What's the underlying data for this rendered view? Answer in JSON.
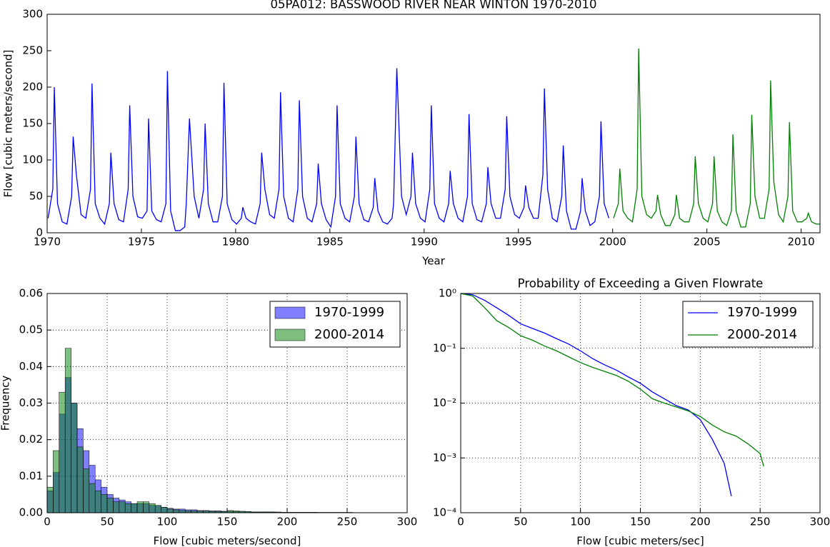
{
  "chart_data": [
    {
      "type": "line",
      "title": "05PA012: BASSWOOD RIVER NEAR WINTON 1970-2010",
      "x_label": "Year",
      "y_label": "Flow [cubic meters/second]",
      "xlim": [
        1970,
        2011
      ],
      "xticks": [
        1970,
        1975,
        1980,
        1985,
        1990,
        1995,
        2000,
        2005,
        2010
      ],
      "ylim": [
        0,
        300
      ],
      "yticks": [
        0,
        50,
        100,
        150,
        200,
        250,
        300
      ],
      "grid": false,
      "series": [
        {
          "color": "#0000ff",
          "x": [
            1970.05,
            1970.3,
            1970.38,
            1970.55,
            1970.8,
            1971.05,
            1971.3,
            1971.38,
            1971.55,
            1971.8,
            1972.05,
            1972.3,
            1972.38,
            1972.55,
            1972.8,
            1973.05,
            1973.3,
            1973.38,
            1973.55,
            1973.8,
            1974.05,
            1974.3,
            1974.38,
            1974.55,
            1974.8,
            1975.05,
            1975.3,
            1975.38,
            1975.55,
            1975.8,
            1976.05,
            1976.3,
            1976.38,
            1976.55,
            1976.8,
            1977.05,
            1977.3,
            1977.38,
            1977.55,
            1977.8,
            1978.05,
            1978.3,
            1978.38,
            1978.55,
            1978.8,
            1979.05,
            1979.3,
            1979.38,
            1979.55,
            1979.8,
            1980.05,
            1980.3,
            1980.38,
            1980.55,
            1980.8,
            1981.05,
            1981.3,
            1981.38,
            1981.55,
            1981.8,
            1982.05,
            1982.3,
            1982.38,
            1982.55,
            1982.8,
            1983.05,
            1983.3,
            1983.38,
            1983.55,
            1983.8,
            1984.05,
            1984.3,
            1984.38,
            1984.55,
            1984.8,
            1985.05,
            1985.3,
            1985.38,
            1985.55,
            1985.8,
            1986.05,
            1986.3,
            1986.38,
            1986.55,
            1986.8,
            1987.05,
            1987.3,
            1987.38,
            1987.55,
            1987.8,
            1988.05,
            1988.3,
            1988.38,
            1988.55,
            1988.8,
            1989.05,
            1989.3,
            1989.38,
            1989.55,
            1989.8,
            1990.05,
            1990.3,
            1990.38,
            1990.55,
            1990.8,
            1991.05,
            1991.3,
            1991.38,
            1991.55,
            1991.8,
            1992.05,
            1992.3,
            1992.38,
            1992.55,
            1992.8,
            1993.05,
            1993.3,
            1993.38,
            1993.55,
            1993.8,
            1994.05,
            1994.3,
            1994.38,
            1994.55,
            1994.8,
            1995.05,
            1995.3,
            1995.38,
            1995.55,
            1995.8,
            1996.05,
            1996.3,
            1996.38,
            1996.55,
            1996.8,
            1997.05,
            1997.3,
            1997.38,
            1997.55,
            1997.8,
            1998.05,
            1998.3,
            1998.38,
            1998.55,
            1998.8,
            1999.05,
            1999.3,
            1999.38,
            1999.55,
            1999.8
          ],
          "values": [
            20,
            60,
            200,
            40,
            15,
            12,
            50,
            132,
            80,
            25,
            20,
            60,
            205,
            40,
            20,
            12,
            40,
            110,
            40,
            18,
            15,
            60,
            175,
            50,
            22,
            20,
            30,
            157,
            30,
            18,
            15,
            40,
            222,
            30,
            3,
            3,
            8,
            40,
            157,
            50,
            20,
            60,
            150,
            40,
            15,
            15,
            50,
            206,
            40,
            18,
            12,
            20,
            35,
            20,
            15,
            12,
            40,
            110,
            60,
            25,
            20,
            60,
            193,
            50,
            20,
            15,
            60,
            182,
            50,
            20,
            15,
            40,
            95,
            40,
            18,
            8,
            50,
            175,
            40,
            20,
            15,
            50,
            132,
            40,
            18,
            15,
            35,
            75,
            30,
            15,
            12,
            20,
            40,
            226,
            50,
            25,
            50,
            110,
            40,
            20,
            15,
            60,
            175,
            40,
            20,
            15,
            40,
            85,
            40,
            20,
            15,
            50,
            163,
            40,
            18,
            15,
            40,
            90,
            40,
            20,
            20,
            60,
            160,
            50,
            25,
            20,
            35,
            65,
            35,
            20,
            20,
            80,
            198,
            60,
            20,
            15,
            50,
            120,
            30,
            5,
            5,
            30,
            75,
            30,
            10,
            15,
            50,
            153,
            40,
            20
          ]
        },
        {
          "color": "#008000",
          "x": [
            2000.05,
            2000.3,
            2000.38,
            2000.55,
            2000.8,
            2001.05,
            2001.3,
            2001.38,
            2001.55,
            2001.8,
            2002.05,
            2002.3,
            2002.38,
            2002.55,
            2002.8,
            2003.05,
            2003.3,
            2003.38,
            2003.55,
            2003.8,
            2004.05,
            2004.3,
            2004.38,
            2004.55,
            2004.8,
            2005.05,
            2005.3,
            2005.38,
            2005.55,
            2005.8,
            2006.05,
            2006.3,
            2006.38,
            2006.55,
            2006.8,
            2007.05,
            2007.3,
            2007.38,
            2007.55,
            2007.8,
            2008.05,
            2008.3,
            2008.38,
            2008.55,
            2008.8,
            2009.05,
            2009.3,
            2009.38,
            2009.55,
            2009.8,
            2010.05,
            2010.3,
            2010.38,
            2010.55,
            2010.8,
            2011
          ],
          "values": [
            20,
            40,
            88,
            30,
            20,
            15,
            60,
            253,
            50,
            25,
            20,
            30,
            52,
            25,
            10,
            10,
            25,
            52,
            20,
            15,
            15,
            40,
            105,
            40,
            20,
            15,
            40,
            105,
            30,
            15,
            10,
            30,
            135,
            30,
            8,
            8,
            40,
            162,
            50,
            20,
            20,
            60,
            209,
            70,
            25,
            15,
            50,
            152,
            30,
            15,
            15,
            20,
            27,
            15,
            12,
            12
          ]
        }
      ]
    },
    {
      "type": "histogram",
      "x_label": "Flow [cubic meters/second]",
      "y_label": "Frequency",
      "xlim": [
        0,
        300
      ],
      "xticks": [
        0,
        50,
        100,
        150,
        200,
        250,
        300
      ],
      "ylim": [
        0,
        0.06
      ],
      "yticks": [
        {
          "value": 0,
          "label": "0.00"
        },
        0.01,
        0.02,
        0.03,
        0.04,
        0.05,
        0.06
      ],
      "grid": true,
      "legend": "upper right",
      "bins": [
        0,
        5,
        10,
        15,
        20,
        25,
        30,
        35,
        40,
        45,
        50,
        55,
        60,
        65,
        70,
        75,
        80,
        85,
        90,
        95,
        100,
        105,
        110,
        115,
        120,
        125,
        130,
        135,
        140,
        145,
        150,
        155,
        160,
        165,
        170,
        175,
        180,
        185,
        190,
        195,
        200,
        205,
        210,
        215,
        220,
        225,
        230,
        235,
        240,
        245,
        250,
        255
      ],
      "series": [
        {
          "name": "1970-1999",
          "color": "#0000ff",
          "values": [
            0.006,
            0.011,
            0.027,
            0.037,
            0.03,
            0.023,
            0.017,
            0.013,
            0.009,
            0.007,
            0.005,
            0.004,
            0.0035,
            0.003,
            0.0025,
            0.0025,
            0.0025,
            0.002,
            0.002,
            0.0015,
            0.0012,
            0.001,
            0.001,
            0.0008,
            0.0008,
            0.0006,
            0.0006,
            0.0005,
            0.0005,
            0.0004,
            0.0004,
            0.0003,
            0.0003,
            0.0003,
            0.0002,
            0.0002,
            0.0002,
            0.0002,
            0.0001,
            0.0001,
            0.0001,
            0.0001,
            0.0001,
            0.0001,
            0.0001,
            0,
            0,
            0,
            0,
            0,
            0
          ]
        },
        {
          "name": "2000-2014",
          "color": "#008000",
          "values": [
            0.007,
            0.017,
            0.033,
            0.045,
            0.03,
            0.018,
            0.012,
            0.008,
            0.006,
            0.005,
            0.004,
            0.003,
            0.003,
            0.0025,
            0.0025,
            0.003,
            0.003,
            0.0025,
            0.002,
            0.0015,
            0.001,
            0.0008,
            0.0006,
            0.0005,
            0.0005,
            0.0005,
            0.0005,
            0.0004,
            0.0004,
            0.0003,
            0.0006,
            0.0005,
            0.0004,
            0.0003,
            0.0002,
            0.0002,
            0.0002,
            0.0002,
            0.0002,
            0.0001,
            0.0001,
            0.0001,
            0.0001,
            0.0001,
            0.0001,
            0.0001,
            0.0001,
            0.0001,
            0.0001,
            0.0001,
            0.0001
          ]
        }
      ]
    },
    {
      "type": "line",
      "title": "Probability of Exceeding a Given Flowrate",
      "x_label": "Flow [cubic meters/sec]",
      "xlim": [
        0,
        300
      ],
      "xticks": [
        0,
        50,
        100,
        150,
        200,
        250,
        300
      ],
      "ylim": [
        0.0001,
        1
      ],
      "log_y": true,
      "yticks": [
        {
          "value": 0.0001,
          "label": "10⁻⁴"
        },
        {
          "value": 0.001,
          "label": "10⁻³"
        },
        {
          "value": 0.01,
          "label": "10⁻²"
        },
        {
          "value": 0.1,
          "label": "10⁻¹"
        },
        {
          "value": 1,
          "label": "10⁰"
        }
      ],
      "grid": true,
      "legend": "upper right",
      "series": [
        {
          "name": "1970-1999",
          "color": "#0000ff",
          "x": [
            0,
            10,
            20,
            30,
            40,
            50,
            60,
            70,
            80,
            90,
            100,
            110,
            120,
            130,
            140,
            150,
            160,
            170,
            180,
            190,
            200,
            210,
            220,
            226
          ],
          "values": [
            1,
            0.95,
            0.75,
            0.55,
            0.4,
            0.28,
            0.23,
            0.19,
            0.15,
            0.12,
            0.09,
            0.065,
            0.05,
            0.04,
            0.03,
            0.023,
            0.016,
            0.012,
            0.009,
            0.0075,
            0.005,
            0.0022,
            0.0008,
            0.0002
          ]
        },
        {
          "name": "2000-2014",
          "color": "#008000",
          "x": [
            0,
            10,
            20,
            30,
            40,
            50,
            60,
            70,
            80,
            90,
            100,
            110,
            120,
            130,
            140,
            150,
            160,
            170,
            180,
            190,
            200,
            210,
            220,
            230,
            240,
            250,
            253
          ],
          "values": [
            1,
            0.9,
            0.55,
            0.32,
            0.24,
            0.17,
            0.14,
            0.11,
            0.09,
            0.07,
            0.055,
            0.045,
            0.038,
            0.032,
            0.025,
            0.018,
            0.012,
            0.01,
            0.0085,
            0.0072,
            0.0057,
            0.004,
            0.003,
            0.0025,
            0.0018,
            0.0012,
            0.0007
          ]
        }
      ]
    }
  ]
}
